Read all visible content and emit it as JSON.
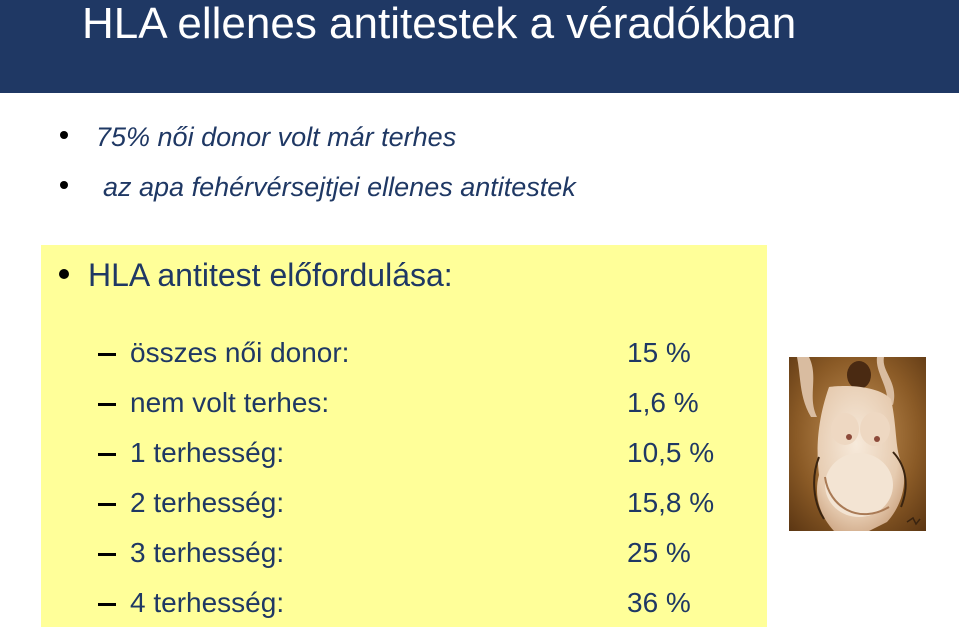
{
  "slide": {
    "title": "HLA  ellenes antitestek a véradókban",
    "bullets": [
      "75% női donor volt már terhes",
      "az apa fehérvérsejtjei ellenes antitestek"
    ],
    "hla_section": {
      "heading": "HLA  antitest előfordulása:",
      "rows": [
        {
          "label": "összes női donor:",
          "value": "15 %"
        },
        {
          "label": "nem volt terhes:",
          "value": "1,6 %"
        },
        {
          "label": "1 terhesség:",
          "value": "10,5 %"
        },
        {
          "label": "2 terhesség:",
          "value": "15,8 %"
        },
        {
          "label": "3 terhesség:",
          "value": "25 %"
        },
        {
          "label": "4 terhesség:",
          "value": "36 %"
        }
      ]
    }
  },
  "colors": {
    "title_bar": "#1f3864",
    "title_text": "#ffffff",
    "body_text": "#1f3864",
    "highlight_box": "#ffff99"
  }
}
